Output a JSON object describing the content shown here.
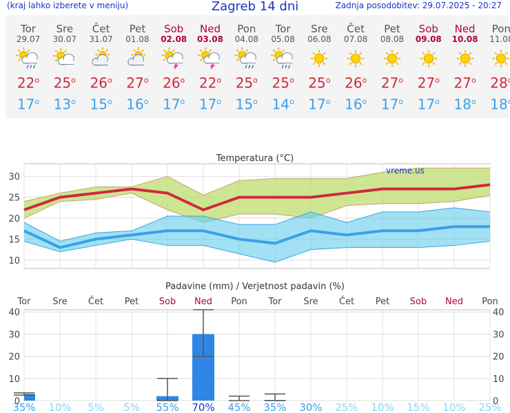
{
  "header": {
    "left_note": "(kraj lahko izberete v meniju)",
    "title": "Zagreb 14 dni",
    "update": "Zadnja posodobitev: 29.07.2025 - 20:27"
  },
  "colors": {
    "max": "#d0283c",
    "min": "#3aa0e8",
    "weekend": "#b0004a",
    "weekday": "#555555",
    "accent": "#1a32c8",
    "precip": "#2e86e6"
  },
  "days": [
    {
      "name": "Tor",
      "date": "29.07",
      "icon": "rain-cloud-sun-icon",
      "max": "22",
      "min": "17",
      "weekend": false
    },
    {
      "name": "Sre",
      "date": "30.07",
      "icon": "partly-cloudy-icon",
      "max": "25",
      "min": "13",
      "weekend": false
    },
    {
      "name": "Čet",
      "date": "31.07",
      "icon": "cloud-sun-icon",
      "max": "26",
      "min": "15",
      "weekend": false
    },
    {
      "name": "Pet",
      "date": "01.08",
      "icon": "cloud-sun-icon",
      "max": "27",
      "min": "16",
      "weekend": false
    },
    {
      "name": "Sob",
      "date": "02.08",
      "icon": "thunderstorm-icon",
      "max": "26",
      "min": "17",
      "weekend": true
    },
    {
      "name": "Ned",
      "date": "03.08",
      "icon": "thunderstorm-icon",
      "max": "22",
      "min": "17",
      "weekend": true
    },
    {
      "name": "Pon",
      "date": "04.08",
      "icon": "rain-cloud-sun-icon",
      "max": "25",
      "min": "15",
      "weekend": false
    },
    {
      "name": "Tor",
      "date": "05.08",
      "icon": "rain-cloud-sun-icon",
      "max": "25",
      "min": "14",
      "weekend": false
    },
    {
      "name": "Sre",
      "date": "06.08",
      "icon": "sun-icon",
      "max": "25",
      "min": "17",
      "weekend": false
    },
    {
      "name": "Čet",
      "date": "07.08",
      "icon": "sun-icon",
      "max": "26",
      "min": "16",
      "weekend": false
    },
    {
      "name": "Pet",
      "date": "08.08",
      "icon": "sun-icon",
      "max": "27",
      "min": "17",
      "weekend": false
    },
    {
      "name": "Sob",
      "date": "09.08",
      "icon": "sun-icon",
      "max": "27",
      "min": "17",
      "weekend": true
    },
    {
      "name": "Ned",
      "date": "10.08",
      "icon": "sun-icon",
      "max": "27",
      "min": "18",
      "weekend": true
    },
    {
      "name": "Pon",
      "date": "11.08",
      "icon": "sun-icon",
      "max": "28",
      "min": "18",
      "weekend": false
    }
  ],
  "chart_data": [
    {
      "type": "line",
      "title": "Temperatura (°C)",
      "watermark": "vreme.us",
      "ylim": [
        8,
        33
      ],
      "yticks": [
        10,
        15,
        20,
        25,
        30
      ],
      "grid": true,
      "categories": [
        "Tor",
        "Sre",
        "Čet",
        "Pet",
        "Sob",
        "Ned",
        "Pon",
        "Tor",
        "Sre",
        "Čet",
        "Pet",
        "Sob",
        "Ned",
        "Pon"
      ],
      "series": [
        {
          "values": [
            22,
            25,
            26,
            27,
            26,
            22,
            25,
            25,
            25,
            26,
            27,
            27,
            27,
            28
          ]
        },
        {
          "values": [
            17,
            13,
            15,
            16,
            17,
            17,
            15,
            14,
            17,
            16,
            17,
            17,
            18,
            18
          ]
        },
        {
          "values": [
            24,
            26,
            27.5,
            27.5,
            30,
            25.5,
            29,
            29.5,
            29.5,
            29.5,
            31,
            32,
            32,
            32
          ]
        },
        {
          "values": [
            20,
            24,
            24.5,
            26,
            22,
            19,
            21,
            21,
            20,
            23,
            23.5,
            23.5,
            24,
            25.5
          ]
        },
        {
          "values": [
            19,
            14.5,
            16.5,
            17,
            20.5,
            20.5,
            18.5,
            18.5,
            21.5,
            19,
            21.5,
            21.5,
            22.5,
            21.5
          ]
        },
        {
          "values": [
            14.5,
            12,
            13.5,
            15,
            13.5,
            13.5,
            11.5,
            9.5,
            12.5,
            13,
            13,
            13,
            13.5,
            14.5
          ]
        }
      ]
    },
    {
      "type": "bar",
      "title": "Padavine (mm) / Verjetnost padavin (%)",
      "ylim": [
        0,
        41
      ],
      "yticks": [
        0,
        10,
        20,
        30,
        40
      ],
      "grid": true,
      "categories": [
        "Tor",
        "Sre",
        "Čet",
        "Pet",
        "Sob",
        "Ned",
        "Pon",
        "Tor",
        "Sre",
        "Čet",
        "Pet",
        "Sob",
        "Ned",
        "Pon"
      ],
      "values": [
        3,
        0,
        0,
        0,
        2,
        30,
        0,
        0.3,
        0,
        0,
        0,
        0,
        0,
        0
      ],
      "range_low": [
        2.5,
        null,
        null,
        null,
        0,
        20,
        0,
        0,
        null,
        null,
        null,
        null,
        null,
        null
      ],
      "range_high": [
        3.5,
        null,
        null,
        null,
        10,
        41,
        2,
        3,
        null,
        null,
        null,
        null,
        null,
        null
      ],
      "probability": [
        "35%",
        "10%",
        "5%",
        "5%",
        "55%",
        "70%",
        "45%",
        "35%",
        "30%",
        "25%",
        "10%",
        "15%",
        "10%",
        "25%"
      ]
    }
  ]
}
